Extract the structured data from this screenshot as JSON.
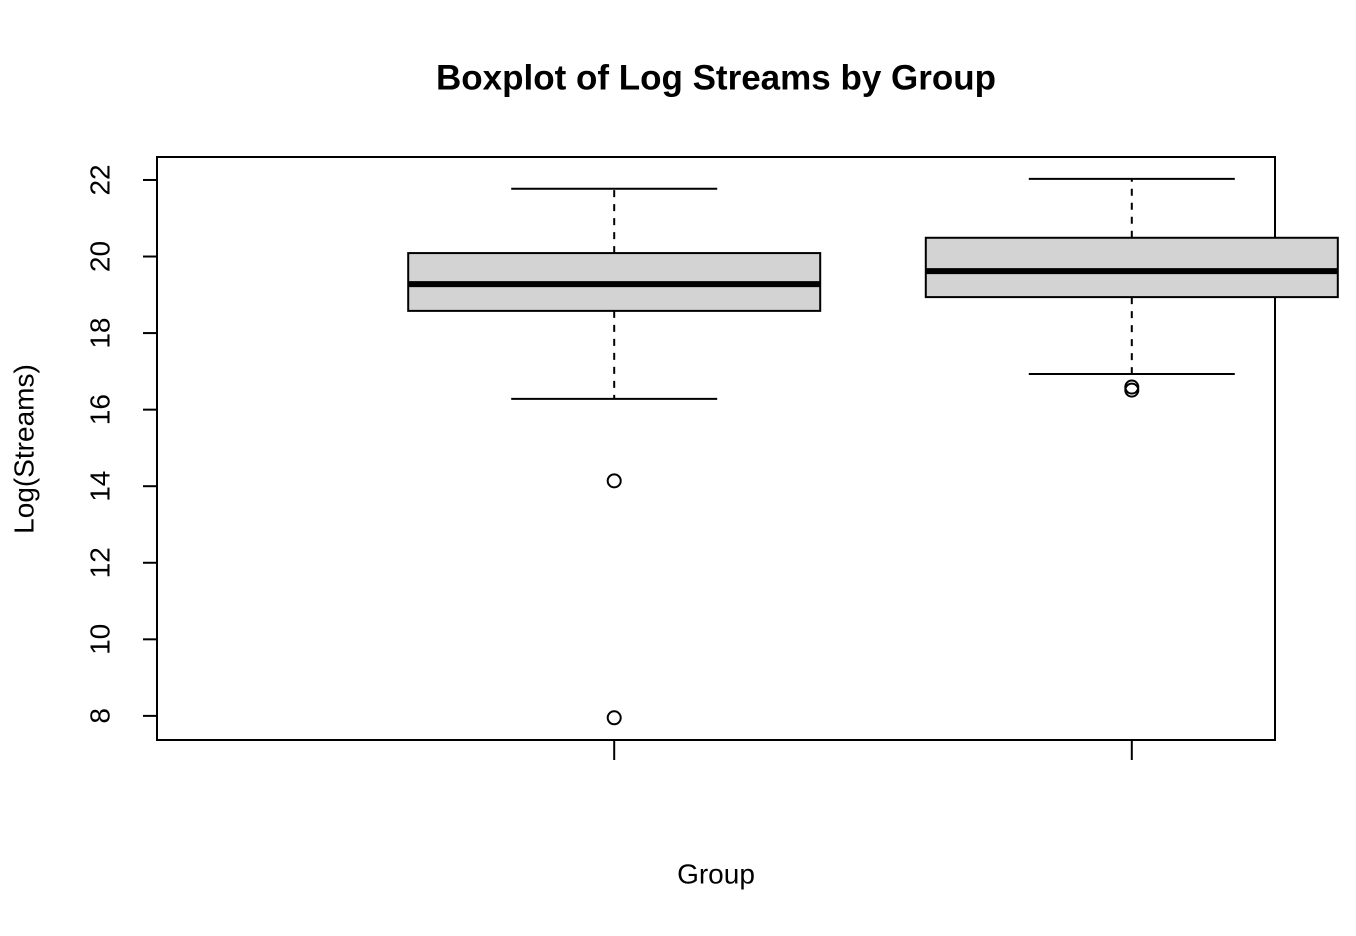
{
  "chart_data": {
    "type": "boxplot",
    "title": "Boxplot of Log Streams by Group",
    "x_label": "Group",
    "y_label": "Log(Streams)",
    "categories": [
      null,
      null
    ],
    "boxes": [
      {
        "whisker_low": 16.28,
        "q1": 18.58,
        "median": 19.28,
        "q3": 20.09,
        "whisker_high": 21.77,
        "outliers": [
          14.14,
          7.95
        ]
      },
      {
        "whisker_low": 16.93,
        "q1": 18.94,
        "median": 19.62,
        "q3": 20.49,
        "whisker_high": 22.03,
        "outliers": [
          16.59,
          16.51
        ]
      }
    ],
    "color": "#d3d3d3",
    "ylim": [
      7.37,
      22.6
    ],
    "yticks": [
      8,
      10,
      12,
      14,
      16,
      18,
      20,
      22
    ]
  }
}
